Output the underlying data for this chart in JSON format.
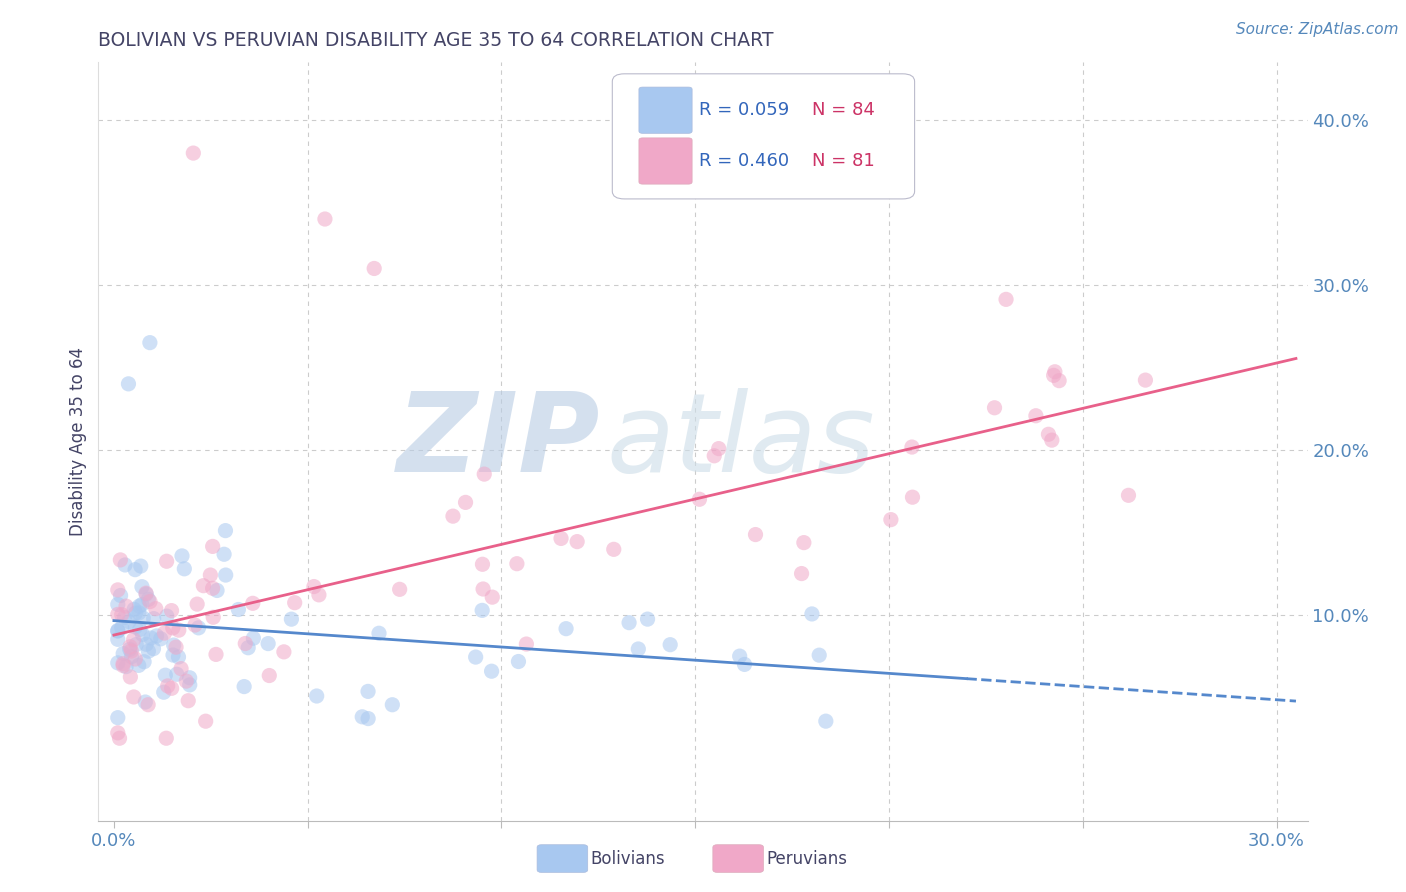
{
  "title": "BOLIVIAN VS PERUVIAN DISABILITY AGE 35 TO 64 CORRELATION CHART",
  "source_text": "Source: ZipAtlas.com",
  "ylabel": "Disability Age 35 to 64",
  "xlim": [
    -0.004,
    0.308
  ],
  "ylim": [
    -0.025,
    0.435
  ],
  "xtick_vals": [
    0.0,
    0.05,
    0.1,
    0.15,
    0.2,
    0.25,
    0.3
  ],
  "xtick_labels": [
    "0.0%",
    "",
    "",
    "",
    "",
    "",
    "30.0%"
  ],
  "ytick_vals": [
    0.1,
    0.2,
    0.3,
    0.4
  ],
  "ytick_labels": [
    "10.0%",
    "20.0%",
    "30.0%",
    "40.0%"
  ],
  "bolivian_R": 0.059,
  "bolivian_N": 84,
  "peruvian_R": 0.46,
  "peruvian_N": 81,
  "color_bolivian": "#a8c8f0",
  "color_peruvian": "#f0a8c8",
  "color_blue_line": "#5588cc",
  "color_pink_line": "#e8608a",
  "color_title": "#444466",
  "color_axis_labels": "#5588bb",
  "background_color": "#ffffff",
  "watermark_zip": "#b8cce4",
  "watermark_atlas": "#ccdde8",
  "legend_R_color": "#3366bb",
  "legend_N_color": "#cc3366",
  "grid_color": "#cccccc",
  "scatter_size": 120,
  "scatter_alpha": 0.55
}
